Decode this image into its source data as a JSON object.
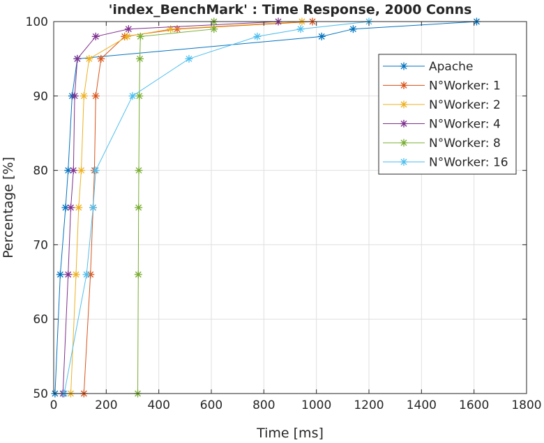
{
  "chart_data": {
    "type": "line",
    "title": "'index_BenchMark' : Time Response, 2000 Conns",
    "xlabel": "Time [ms]",
    "ylabel": "Percentage [%]",
    "xlim": [
      0,
      1800
    ],
    "ylim": [
      50,
      100
    ],
    "xticks": [
      "0",
      "200",
      "400",
      "600",
      "800",
      "1000",
      "1200",
      "1400",
      "1600",
      "1800"
    ],
    "yticks": [
      "50",
      "60",
      "70",
      "80",
      "90",
      "100"
    ],
    "grid": true,
    "legend_position": "top-right",
    "y": [
      50,
      66,
      75,
      80,
      90,
      95,
      98,
      99,
      100
    ],
    "series": [
      {
        "name": "Apache",
        "color": "#0072BD",
        "x": [
          5,
          25,
          45,
          55,
          70,
          90,
          1020,
          1140,
          1610
        ]
      },
      {
        "name": "N°Worker: 1",
        "color": "#D95319",
        "x": [
          115,
          140,
          150,
          155,
          160,
          180,
          270,
          470,
          985
        ]
      },
      {
        "name": "N°Worker: 2",
        "color": "#EDB120",
        "x": [
          65,
          85,
          95,
          105,
          115,
          135,
          280,
          445,
          945
        ]
      },
      {
        "name": "N°Worker: 4",
        "color": "#7E2F8E",
        "x": [
          35,
          55,
          65,
          75,
          80,
          90,
          160,
          285,
          855
        ]
      },
      {
        "name": "N°Worker: 8",
        "color": "#77AC30",
        "x": [
          320,
          322,
          323,
          324,
          326,
          328,
          330,
          610,
          610
        ]
      },
      {
        "name": "N°Worker: 16",
        "color": "#4DBEEE",
        "x": [
          40,
          125,
          150,
          160,
          300,
          515,
          775,
          940,
          1200
        ]
      }
    ]
  }
}
